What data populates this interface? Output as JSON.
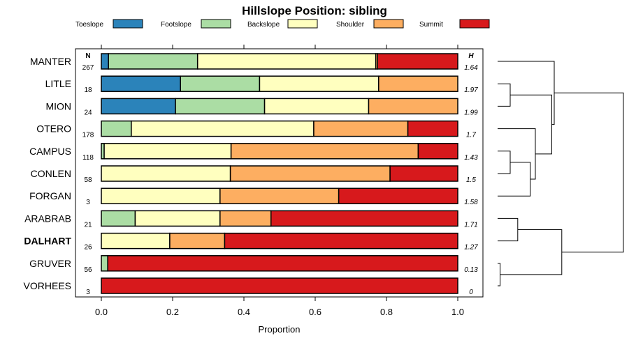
{
  "chart_data": {
    "type": "bar",
    "stacked": true,
    "orientation": "horizontal",
    "title": "Hillslope Position: sibling",
    "xlabel": "Proportion",
    "xlim": [
      0,
      1
    ],
    "xticks": [
      "0.0",
      "0.2",
      "0.4",
      "0.6",
      "0.8",
      "1.0"
    ],
    "n_header": "N",
    "h_header": "H",
    "legend": [
      {
        "name": "Toeslope",
        "color": "#2B83BA"
      },
      {
        "name": "Footslope",
        "color": "#ABDDA4"
      },
      {
        "name": "Backslope",
        "color": "#FFFFBF"
      },
      {
        "name": "Shoulder",
        "color": "#FDAE61"
      },
      {
        "name": "Summit",
        "color": "#D7191C"
      }
    ],
    "rows": [
      {
        "name": "MANTER",
        "n": "267",
        "h": "1.64",
        "bold": false,
        "values": [
          0.02,
          0.25,
          0.5,
          0.005,
          0.225
        ]
      },
      {
        "name": "LITLE",
        "n": "18",
        "h": "1.97",
        "bold": false,
        "values": [
          0.222,
          0.222,
          0.334,
          0.222,
          0
        ]
      },
      {
        "name": "MION",
        "n": "24",
        "h": "1.99",
        "bold": false,
        "values": [
          0.208,
          0.25,
          0.292,
          0.25,
          0
        ]
      },
      {
        "name": "OTERO",
        "n": "178",
        "h": "1.7",
        "bold": false,
        "values": [
          0,
          0.084,
          0.512,
          0.264,
          0.14
        ]
      },
      {
        "name": "CAMPUS",
        "n": "118",
        "h": "1.43",
        "bold": false,
        "values": [
          0,
          0.008,
          0.356,
          0.525,
          0.111
        ]
      },
      {
        "name": "CONLEN",
        "n": "58",
        "h": "1.5",
        "bold": false,
        "values": [
          0,
          0,
          0.362,
          0.448,
          0.19
        ]
      },
      {
        "name": "FORGAN",
        "n": "3",
        "h": "1.58",
        "bold": false,
        "values": [
          0,
          0,
          0.333,
          0.333,
          0.334
        ]
      },
      {
        "name": "ARABRAB",
        "n": "21",
        "h": "1.71",
        "bold": false,
        "values": [
          0,
          0.095,
          0.238,
          0.143,
          0.524
        ]
      },
      {
        "name": "DALHART",
        "n": "26",
        "h": "1.27",
        "bold": true,
        "values": [
          0,
          0,
          0.192,
          0.154,
          0.654
        ]
      },
      {
        "name": "GRUVER",
        "n": "56",
        "h": "0.13",
        "bold": false,
        "values": [
          0,
          0.018,
          0,
          0,
          0.982
        ]
      },
      {
        "name": "VORHEES",
        "n": "3",
        "h": "0",
        "bold": false,
        "values": [
          0,
          0,
          0,
          0,
          1
        ]
      }
    ],
    "dendrogram": {
      "merges": [
        [
          1,
          2,
          0.1
        ],
        [
          4,
          5,
          0.1
        ],
        [
          9,
          10,
          0.02
        ],
        [
          7,
          8,
          0.16
        ],
        [
          "m1",
          6,
          0.26
        ],
        [
          3,
          "m4",
          0.3
        ],
        [
          "m0",
          "m5",
          0.43
        ],
        [
          "m3",
          "m2",
          0.51
        ],
        [
          0,
          "m6",
          0.45
        ],
        [
          "m8",
          "m7",
          1.0
        ]
      ]
    }
  }
}
